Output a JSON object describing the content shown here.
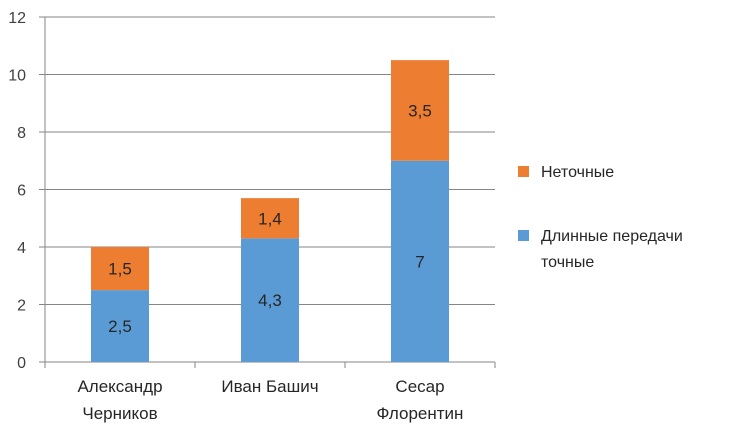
{
  "chart_data": {
    "type": "bar",
    "stacked": true,
    "categories": [
      [
        "Александр",
        "Черников"
      ],
      [
        "Иван Башич"
      ],
      [
        "Сесар",
        "Флорентин"
      ]
    ],
    "series": [
      {
        "name": "Длинные передачи точные",
        "color": "#5B9BD5",
        "values": [
          2.5,
          4.3,
          7
        ],
        "labels": [
          "2,5",
          "4,3",
          "7"
        ]
      },
      {
        "name": "Неточные",
        "color": "#ED7D31",
        "values": [
          1.5,
          1.4,
          3.5
        ],
        "labels": [
          "1,5",
          "1,4",
          "3,5"
        ]
      }
    ],
    "legend": {
      "position": "right",
      "order": [
        1,
        0
      ],
      "entries": [
        [
          "Неточные"
        ],
        [
          "Длинные передачи",
          "точные"
        ]
      ]
    },
    "ylim": [
      0,
      12
    ],
    "yticks": [
      0,
      2,
      4,
      6,
      8,
      10,
      12
    ],
    "grid": true,
    "title": "",
    "xlabel": "",
    "ylabel": ""
  }
}
